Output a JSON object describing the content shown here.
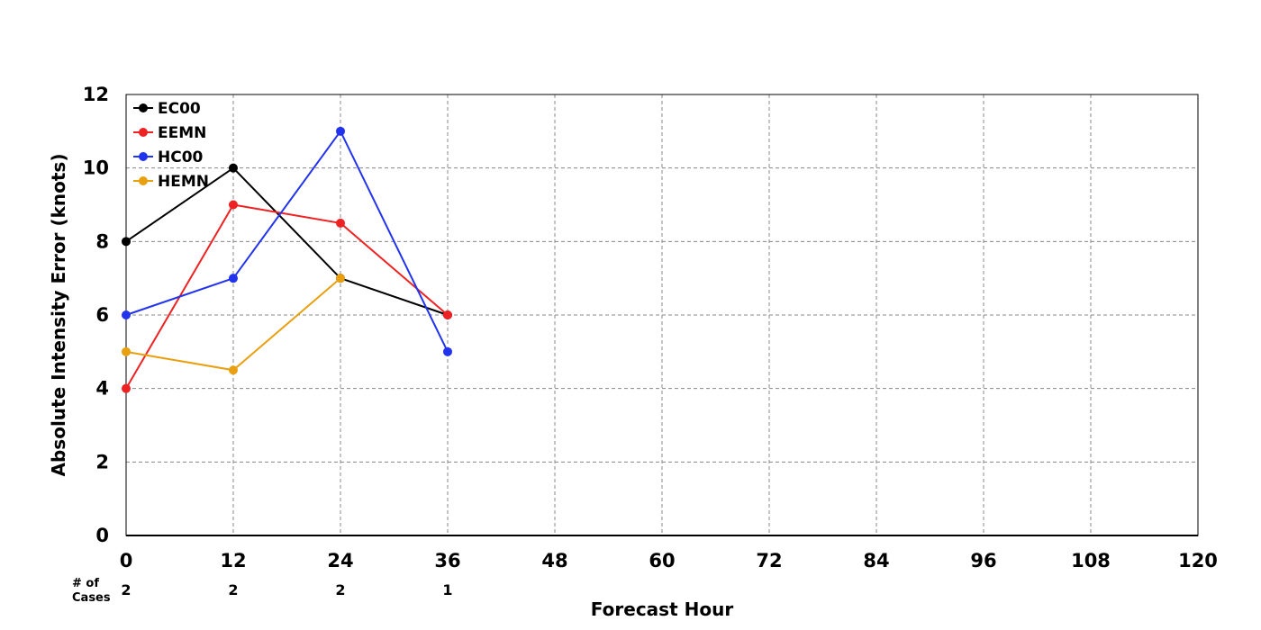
{
  "chart_data": {
    "type": "line",
    "title": "",
    "xlabel": "Forecast Hour",
    "ylabel": "Absolute Intensity Error (knots)",
    "xlim": [
      0,
      120
    ],
    "ylim": [
      0,
      12
    ],
    "x_ticks": [
      0,
      12,
      24,
      36,
      48,
      60,
      72,
      84,
      96,
      108,
      120
    ],
    "y_ticks": [
      0,
      2,
      4,
      6,
      8,
      10,
      12
    ],
    "grid": true,
    "legend_position": "top-left",
    "cases_label_line1": "# of",
    "cases_label_line2": "Cases",
    "cases": [
      {
        "x": 0,
        "count": "2"
      },
      {
        "x": 12,
        "count": "2"
      },
      {
        "x": 24,
        "count": "2"
      },
      {
        "x": 36,
        "count": "1"
      }
    ],
    "series": [
      {
        "name": "EC00",
        "color": "#000000",
        "x": [
          0,
          12,
          24,
          36
        ],
        "values": [
          8,
          10,
          7,
          6
        ]
      },
      {
        "name": "EEMN",
        "color": "#ee2222",
        "x": [
          0,
          12,
          24,
          36
        ],
        "values": [
          4,
          9,
          8.5,
          6
        ]
      },
      {
        "name": "HC00",
        "color": "#2233ee",
        "x": [
          0,
          12,
          24,
          36
        ],
        "values": [
          6,
          7,
          11,
          5
        ]
      },
      {
        "name": "HEMN",
        "color": "#e8a010",
        "x": [
          0,
          12,
          24
        ],
        "values": [
          5,
          4.5,
          7
        ]
      }
    ]
  }
}
